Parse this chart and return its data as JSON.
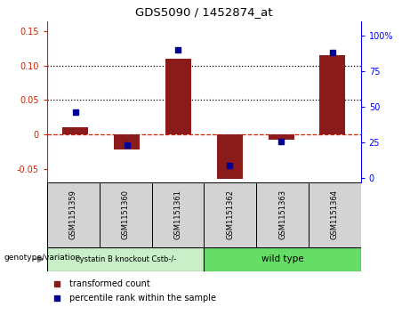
{
  "title": "GDS5090 / 1452874_at",
  "samples": [
    "GSM1151359",
    "GSM1151360",
    "GSM1151361",
    "GSM1151362",
    "GSM1151363",
    "GSM1151364"
  ],
  "transformed_count": [
    0.01,
    -0.022,
    0.11,
    -0.065,
    -0.008,
    0.115
  ],
  "percentile_rank": [
    46,
    23,
    90,
    9,
    26,
    88
  ],
  "ylim_left": [
    -0.07,
    0.165
  ],
  "ylim_right": [
    -3,
    110
  ],
  "yticks_left": [
    -0.05,
    0.0,
    0.05,
    0.1,
    0.15
  ],
  "ytick_labels_left": [
    "-0.05",
    "0",
    "0.05",
    "0.10",
    "0.15"
  ],
  "yticks_right": [
    0,
    25,
    50,
    75,
    100
  ],
  "ytick_labels_right": [
    "0",
    "25",
    "50",
    "75",
    "100%"
  ],
  "bar_color": "#8B1A1A",
  "dot_color": "#000099",
  "hline_color": "#CC2200",
  "dotted_line_color": "#000000",
  "background_color": "#ffffff",
  "label_transformed": "transformed count",
  "label_percentile": "percentile rank within the sample",
  "group_row_label": "genotype/variation",
  "group1_label": "cystatin B knockout Cstb-/-",
  "group2_label": "wild type",
  "group1_color": "#c8efc8",
  "group2_color": "#66dd66",
  "sample_box_color": "#d3d3d3"
}
